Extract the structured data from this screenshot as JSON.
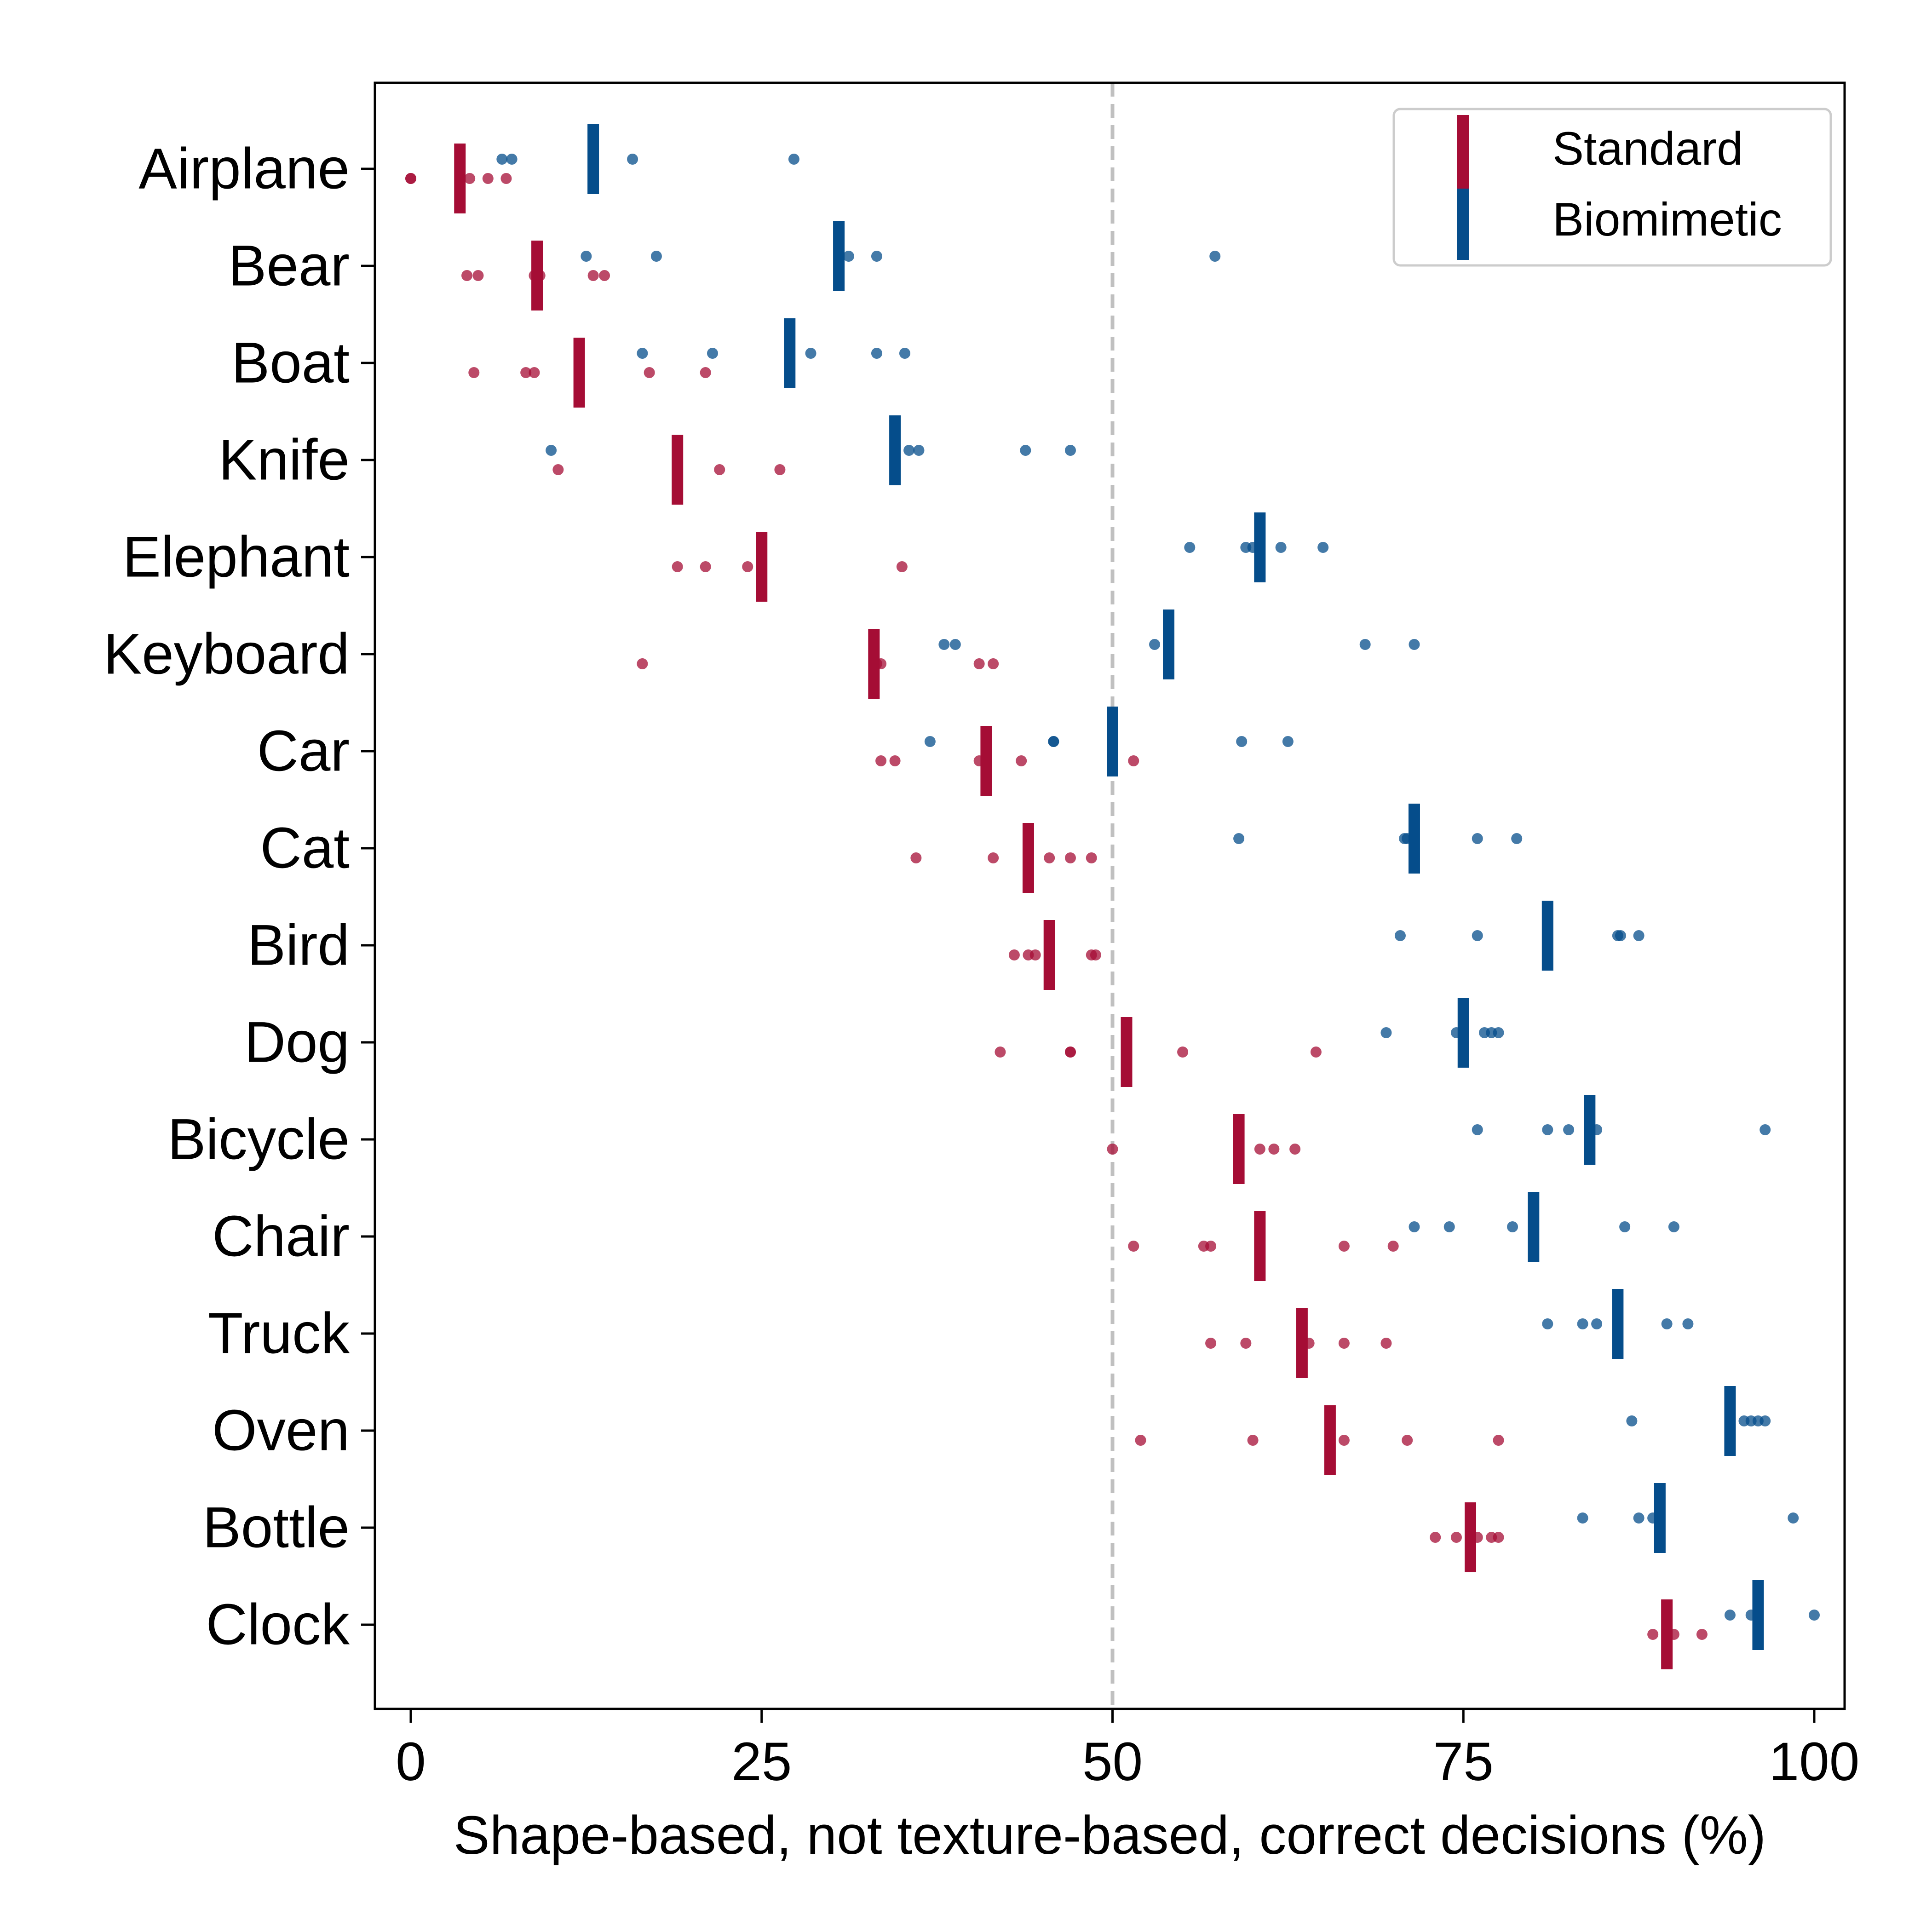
{
  "chart_data": {
    "type": "scatter",
    "xlabel": "Shape-based, not texture-based, correct decisions (%)",
    "xlim": [
      -1,
      102
    ],
    "x_ticks": [
      "0",
      "25",
      "50",
      "75",
      "100"
    ],
    "x_tick_values": [
      0,
      25,
      50,
      75,
      100
    ],
    "reference_line": 50,
    "categories": [
      "Airplane",
      "Bear",
      "Boat",
      "Knife",
      "Elephant",
      "Keyboard",
      "Car",
      "Cat",
      "Bird",
      "Dog",
      "Bicycle",
      "Chair",
      "Truck",
      "Oven",
      "Bottle",
      "Clock"
    ],
    "legend": {
      "placement": "top-right",
      "entries": [
        "Standard",
        "Biomimetic"
      ]
    },
    "series": [
      {
        "name": "Standard",
        "color": "#a50d35",
        "means": [
          3.5,
          9,
          12,
          19,
          25,
          33,
          41,
          44,
          45.5,
          51,
          59,
          60.5,
          63.5,
          65.5,
          75.5,
          89.5
        ],
        "points": [
          [
            0,
            0,
            4.2,
            5.5,
            6.8
          ],
          [
            4,
            4.8,
            8.8,
            9.2,
            13,
            13.8
          ],
          [
            4.5,
            8.2,
            8.8,
            17,
            21
          ],
          [
            10.5,
            19,
            22,
            26.3
          ],
          [
            19,
            21,
            24,
            25,
            35
          ],
          [
            16.5,
            33.2,
            33.5,
            40.5,
            41.5
          ],
          [
            33.5,
            34.5,
            40.5,
            43.5,
            51.5
          ],
          [
            36,
            41.5,
            45.5,
            47,
            48.5
          ],
          [
            43,
            44,
            44.5,
            48.5,
            48.8
          ],
          [
            42,
            47,
            47,
            55,
            64.5
          ],
          [
            50,
            59,
            60.5,
            61.5,
            63
          ],
          [
            51.5,
            56.5,
            57,
            66.5,
            70
          ],
          [
            57,
            59.5,
            64,
            66.5,
            69.5
          ],
          [
            52,
            60,
            66.5,
            71,
            77.5
          ],
          [
            73,
            74.5,
            76,
            77,
            77.5
          ],
          [
            88.5,
            89.5,
            90,
            92
          ]
        ]
      },
      {
        "name": "Biomimetic",
        "color": "#054d8b",
        "means": [
          13,
          30.5,
          27,
          34.5,
          60.5,
          54,
          50,
          71.5,
          81,
          75,
          84,
          80,
          86,
          94,
          89,
          96
        ],
        "points": [
          [
            6.5,
            7.2,
            15.8,
            27.3
          ],
          [
            12.5,
            17.5,
            31.2,
            33.2,
            57.3
          ],
          [
            16.5,
            21.5,
            28.5,
            33.2,
            35.2
          ],
          [
            10,
            35.5,
            36.2,
            43.8,
            47
          ],
          [
            55.5,
            59.5,
            60,
            62,
            65
          ],
          [
            53,
            38,
            38.8,
            68,
            71.5
          ],
          [
            37,
            45.8,
            45.8,
            59.2,
            62.5
          ],
          [
            59,
            70.8,
            71,
            76,
            78.8
          ],
          [
            70.5,
            76,
            86,
            86.2,
            87.5
          ],
          [
            69.5,
            74.5,
            76.5,
            77,
            77.5
          ],
          [
            76,
            81,
            82.5,
            84.5,
            96.5
          ],
          [
            71.5,
            74,
            78.5,
            86.5,
            90
          ],
          [
            81,
            83.5,
            84.5,
            89.5,
            91
          ],
          [
            87,
            95,
            95.5,
            96,
            96.5
          ],
          [
            83.5,
            87.5,
            88.5,
            98.5
          ],
          [
            94,
            95.5,
            96,
            100
          ]
        ]
      }
    ]
  }
}
